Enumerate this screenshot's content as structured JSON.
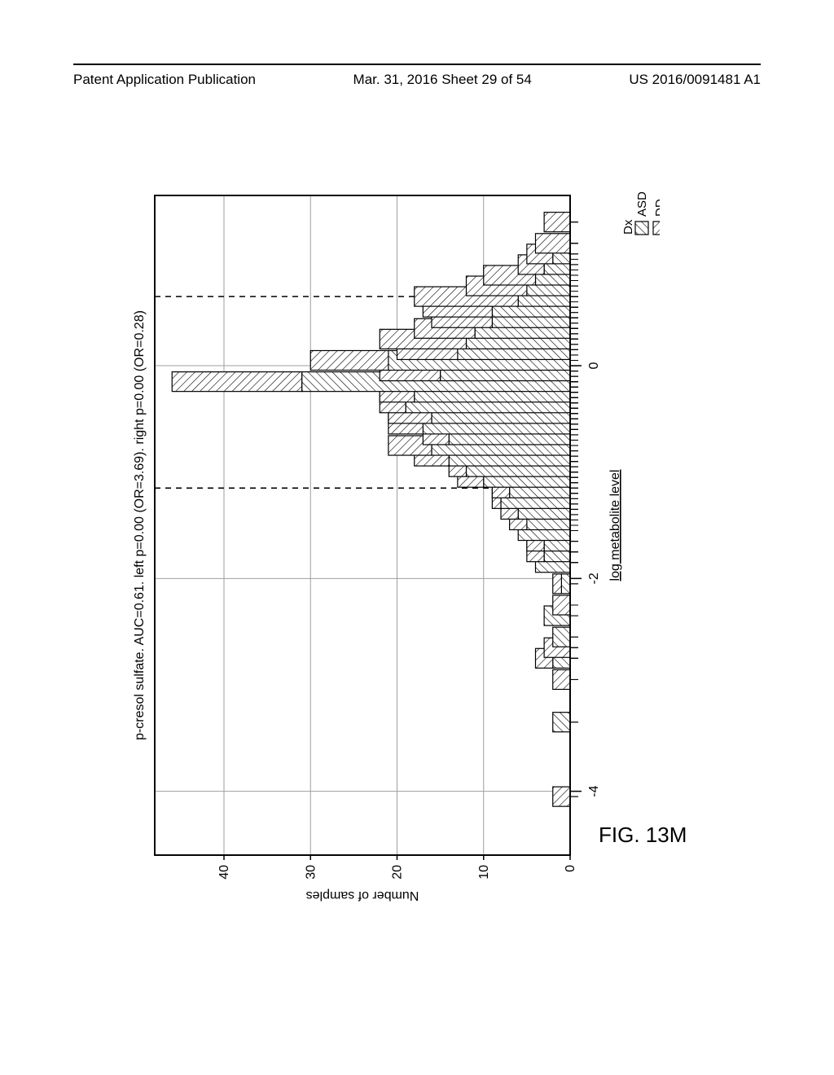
{
  "header": {
    "left": "Patent Application Publication",
    "center": "Mar. 31, 2016  Sheet 29 of 54",
    "right": "US 2016/0091481 A1"
  },
  "figure_label": "FIG. 13M",
  "chart": {
    "type": "stacked-histogram",
    "orientation": "rotated-90-ccw",
    "title": "p-cresol sulfate. AUC=0.61. left p=0.00 (OR=3.69). right p=0.00 (OR=0.28)",
    "title_fontsize": 16,
    "xlabel": "log metabolite level",
    "ylabel": "Number of samples",
    "label_fontsize": 16,
    "background_color": "#ffffff",
    "panel_border_color": "#000000",
    "grid_color": "#9e9e9e",
    "tick_color": "#000000",
    "bar_outline": "#000000",
    "xlim": [
      -4.6,
      1.6
    ],
    "ylim": [
      0,
      48
    ],
    "xticks": [
      -4,
      -2,
      0
    ],
    "yticks": [
      0,
      10,
      20,
      30,
      40
    ],
    "vlines": [
      -1.15,
      0.65
    ],
    "vline_style": "dashed",
    "bin_width": 0.2,
    "legend": {
      "title": "Dx",
      "items": [
        {
          "label": "ASD",
          "pattern": "hatch-45"
        },
        {
          "label": "DD",
          "pattern": "hatch-135"
        }
      ],
      "fontsize": 15
    },
    "bins": [
      {
        "x": -4.05,
        "asd": 0,
        "dd": 2
      },
      {
        "x": -3.35,
        "asd": 2,
        "dd": 0
      },
      {
        "x": -2.95,
        "asd": 0,
        "dd": 2
      },
      {
        "x": -2.75,
        "asd": 2,
        "dd": 2
      },
      {
        "x": -2.65,
        "asd": 0,
        "dd": 3
      },
      {
        "x": -2.55,
        "asd": 2,
        "dd": 0
      },
      {
        "x": -2.35,
        "asd": 3,
        "dd": 0
      },
      {
        "x": -2.25,
        "asd": 0,
        "dd": 2
      },
      {
        "x": -2.05,
        "asd": 1,
        "dd": 1
      },
      {
        "x": -1.85,
        "asd": 4,
        "dd": 0
      },
      {
        "x": -1.75,
        "asd": 3,
        "dd": 2
      },
      {
        "x": -1.65,
        "asd": 3,
        "dd": 2
      },
      {
        "x": -1.55,
        "asd": 6,
        "dd": 0
      },
      {
        "x": -1.45,
        "asd": 5,
        "dd": 2
      },
      {
        "x": -1.35,
        "asd": 6,
        "dd": 2
      },
      {
        "x": -1.25,
        "asd": 8,
        "dd": 1
      },
      {
        "x": -1.15,
        "asd": 7,
        "dd": 2
      },
      {
        "x": -1.05,
        "asd": 10,
        "dd": 3
      },
      {
        "x": -0.95,
        "asd": 12,
        "dd": 2
      },
      {
        "x": -0.85,
        "asd": 14,
        "dd": 4
      },
      {
        "x": -0.75,
        "asd": 16,
        "dd": 5
      },
      {
        "x": -0.65,
        "asd": 14,
        "dd": 3
      },
      {
        "x": -0.55,
        "asd": 17,
        "dd": 4
      },
      {
        "x": -0.45,
        "asd": 16,
        "dd": 5
      },
      {
        "x": -0.35,
        "asd": 19,
        "dd": 3
      },
      {
        "x": -0.25,
        "asd": 18,
        "dd": 4
      },
      {
        "x": -0.15,
        "asd": 31,
        "dd": 15
      },
      {
        "x": -0.05,
        "asd": 15,
        "dd": 7
      },
      {
        "x": 0.05,
        "asd": 21,
        "dd": 9
      },
      {
        "x": 0.15,
        "asd": 13,
        "dd": 7
      },
      {
        "x": 0.25,
        "asd": 12,
        "dd": 10
      },
      {
        "x": 0.35,
        "asd": 11,
        "dd": 7
      },
      {
        "x": 0.45,
        "asd": 9,
        "dd": 7
      },
      {
        "x": 0.55,
        "asd": 9,
        "dd": 8
      },
      {
        "x": 0.65,
        "asd": 6,
        "dd": 12
      },
      {
        "x": 0.75,
        "asd": 5,
        "dd": 7
      },
      {
        "x": 0.85,
        "asd": 4,
        "dd": 6
      },
      {
        "x": 0.95,
        "asd": 3,
        "dd": 3
      },
      {
        "x": 1.05,
        "asd": 2,
        "dd": 3
      },
      {
        "x": 1.15,
        "asd": 0,
        "dd": 4
      },
      {
        "x": 1.35,
        "asd": 0,
        "dd": 3
      }
    ],
    "rug_asd": [
      -3.35,
      -3.35,
      -2.75,
      -2.75,
      -2.55,
      -2.55,
      -2.35,
      -2.35,
      -2.35,
      -2.05,
      -1.85,
      -1.85,
      -1.85,
      -1.85,
      -1.75,
      -1.75,
      -1.75,
      -1.65,
      -1.65,
      -1.65,
      -1.55,
      -1.5,
      -1.5,
      -1.5,
      -1.5,
      -1.45,
      -1.4,
      -1.4,
      -1.4,
      -1.35,
      -1.3,
      -1.3,
      -1.3,
      -1.25,
      -1.2,
      -1.2,
      -1.2,
      -1.2,
      -1.15,
      -1.1,
      -1.1,
      -1.1,
      -1.05,
      -1.0,
      -1.0,
      -1.0,
      -1.0,
      -1.0,
      -0.95,
      -0.9,
      -0.9,
      -0.9,
      -0.9,
      -0.9,
      -0.9,
      -0.85,
      -0.8,
      -0.8,
      -0.8,
      -0.8,
      -0.8,
      -0.8,
      -0.8,
      -0.75,
      -0.75,
      -0.7,
      -0.7,
      -0.7,
      -0.7,
      -0.7,
      -0.7,
      -0.65,
      -0.65,
      -0.6,
      -0.6,
      -0.6,
      -0.6,
      -0.6,
      -0.6,
      -0.6,
      -0.55,
      -0.55,
      -0.5,
      -0.5,
      -0.5,
      -0.5,
      -0.5,
      -0.5,
      -0.45,
      -0.4,
      -0.4,
      -0.4,
      -0.4,
      -0.4,
      -0.4,
      -0.4,
      -0.35,
      -0.3,
      -0.3,
      -0.3,
      -0.3,
      -0.3,
      -0.3,
      -0.25,
      -0.2,
      -0.2,
      -0.2,
      -0.2,
      -0.2,
      -0.2,
      -0.2,
      -0.2,
      -0.2,
      -0.2,
      -0.15,
      -0.15,
      -0.1,
      -0.1,
      -0.1,
      -0.1,
      -0.1,
      -0.05,
      0.0,
      0.0,
      0.0,
      0.0,
      0.0,
      0.0,
      0.0,
      0.05,
      0.1,
      0.1,
      0.1,
      0.1,
      0.15,
      0.2,
      0.2,
      0.2,
      0.2,
      0.25,
      0.3,
      0.3,
      0.3,
      0.35,
      0.4,
      0.4,
      0.45,
      0.5,
      0.5,
      0.55,
      0.6,
      0.65,
      0.7,
      0.75,
      0.8,
      0.85,
      0.9,
      1.0
    ],
    "rug_dd": [
      -4.05,
      -4.05,
      -2.95,
      -2.95,
      -2.75,
      -2.75,
      -2.65,
      -2.65,
      -2.65,
      -2.25,
      -2.25,
      -2.05,
      -1.75,
      -1.75,
      -1.65,
      -1.65,
      -1.45,
      -1.45,
      -1.35,
      -1.35,
      -1.25,
      -1.15,
      -1.15,
      -1.05,
      -1.05,
      -1.05,
      -0.95,
      -0.95,
      -0.85,
      -0.85,
      -0.85,
      -0.85,
      -0.75,
      -0.75,
      -0.75,
      -0.75,
      -0.75,
      -0.65,
      -0.65,
      -0.65,
      -0.55,
      -0.55,
      -0.55,
      -0.55,
      -0.45,
      -0.45,
      -0.45,
      -0.45,
      -0.45,
      -0.35,
      -0.35,
      -0.35,
      -0.25,
      -0.25,
      -0.25,
      -0.25,
      -0.15,
      -0.15,
      -0.15,
      -0.15,
      -0.15,
      -0.15,
      -0.15,
      -0.15,
      -0.15,
      -0.15,
      -0.15,
      -0.15,
      -0.15,
      -0.15,
      -0.15,
      -0.05,
      -0.05,
      -0.05,
      -0.05,
      -0.05,
      -0.05,
      -0.05,
      0.05,
      0.05,
      0.05,
      0.05,
      0.05,
      0.05,
      0.05,
      0.05,
      0.05,
      0.15,
      0.15,
      0.15,
      0.15,
      0.15,
      0.15,
      0.15,
      0.25,
      0.25,
      0.25,
      0.25,
      0.25,
      0.25,
      0.25,
      0.25,
      0.25,
      0.25,
      0.35,
      0.35,
      0.35,
      0.35,
      0.35,
      0.35,
      0.35,
      0.45,
      0.45,
      0.45,
      0.45,
      0.45,
      0.45,
      0.45,
      0.55,
      0.55,
      0.55,
      0.55,
      0.55,
      0.55,
      0.55,
      0.55,
      0.65,
      0.65,
      0.65,
      0.65,
      0.65,
      0.65,
      0.65,
      0.65,
      0.65,
      0.65,
      0.65,
      0.65,
      0.75,
      0.75,
      0.75,
      0.75,
      0.75,
      0.75,
      0.75,
      0.85,
      0.85,
      0.85,
      0.85,
      0.85,
      0.85,
      0.95,
      0.95,
      0.95,
      1.05,
      1.05,
      1.05,
      1.15,
      1.15,
      1.15,
      1.15,
      1.35,
      1.35,
      1.35
    ]
  }
}
